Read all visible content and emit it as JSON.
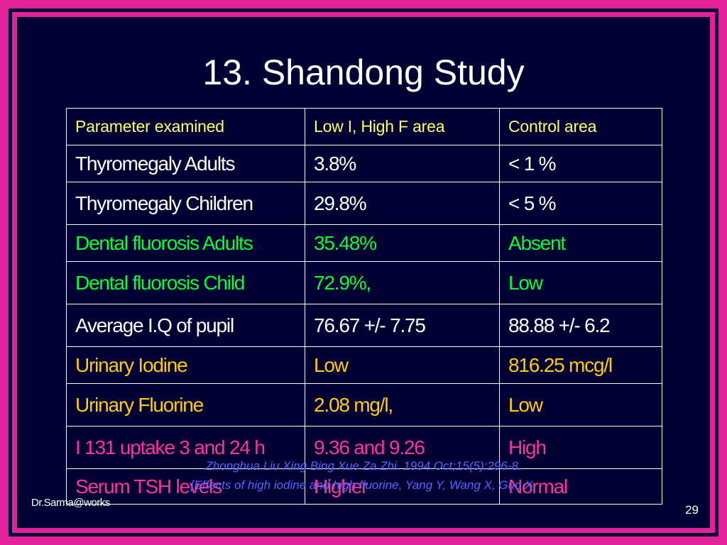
{
  "slide": {
    "title": "13. Shandong Study",
    "author": "Dr.Sarma@works",
    "page_number": "29",
    "colors": {
      "background": "#000033",
      "frame": "#e2219a",
      "header_text": "#ffff66",
      "white_text": "#ffffff",
      "green_text": "#00ff33",
      "yellow_text": "#ffcc00",
      "pink_text": "#ff3399",
      "citation_text": "#5566ff"
    }
  },
  "table": {
    "headers": [
      "Parameter examined",
      "Low I, High F area",
      "Control area"
    ],
    "rows": [
      {
        "color": "white",
        "cells": [
          "Thyromegaly Adults",
          "3.8%",
          "< 1 %"
        ]
      },
      {
        "color": "white",
        "cells": [
          "Thyromegaly Children",
          "29.8%",
          "< 5 %"
        ]
      },
      {
        "color": "green",
        "cells": [
          "Dental fluorosis  Adults",
          "35.48%",
          "Absent"
        ]
      },
      {
        "color": "green",
        "cells": [
          "Dental fluorosis  Child",
          "72.9%,",
          "Low"
        ]
      },
      {
        "color": "white",
        "cells": [
          "Average I.Q of pupil",
          "76.67 +/- 7.75",
          "88.88 +/- 6.2"
        ]
      },
      {
        "color": "yellow",
        "cells": [
          "Urinary Iodine",
          "Low",
          "816.25 mcg/l"
        ]
      },
      {
        "color": "yellow",
        "cells": [
          "Urinary Fluorine",
          "2.08 mg/l,",
          "Low"
        ]
      },
      {
        "color": "pink",
        "cells": [
          "I 131 uptake 3 and 24 h",
          "9.36 and 9.26",
          "High"
        ]
      },
      {
        "color": "pink",
        "cells": [
          "Serum TSH levels",
          "Higher",
          "Normal"
        ]
      }
    ]
  },
  "citation": {
    "line1": "Zhonghua Liu Xing Bing Xue Za Zhi. 1994 Oct;15(5):296-8.",
    "line2": "[Effects of high iodine and high fluorine, Yang Y, Wang X, Guo X."
  }
}
